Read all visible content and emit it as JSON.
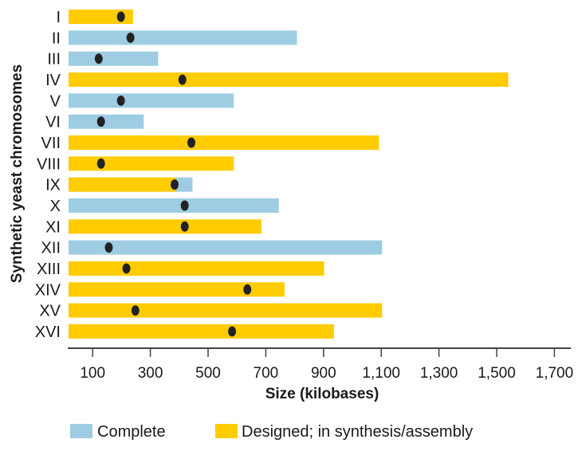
{
  "chart_data": {
    "type": "bar",
    "orientation": "horizontal",
    "xlabel": "Size (kilobases)",
    "ylabel": "Synthetic yeast chromosomes",
    "xlim": [
      14,
      1760
    ],
    "xticks": [
      100,
      300,
      500,
      700,
      900,
      1100,
      1300,
      1500,
      1700
    ],
    "xtick_labels": [
      "100",
      "300",
      "500",
      "700",
      "900",
      "1,100",
      "1,300",
      "1,500",
      "1,700"
    ],
    "colors": {
      "complete": "#9ecde3",
      "designed": "#ffcc00",
      "centromere": "#222222"
    },
    "legend": {
      "placement": "bottom",
      "items": [
        {
          "key": "complete",
          "label": "Complete"
        },
        {
          "key": "designed",
          "label": "Designed; in synthesis/assembly"
        }
      ]
    },
    "chromosomes": [
      {
        "name": "I",
        "size": 240,
        "status": "designed",
        "centromere": 198
      },
      {
        "name": "II",
        "size": 808,
        "status": "complete",
        "centromere": 231
      },
      {
        "name": "III",
        "size": 327,
        "status": "complete",
        "centromere": 121
      },
      {
        "name": "IV",
        "size": 1540,
        "status": "designed",
        "centromere": 411
      },
      {
        "name": "V",
        "size": 589,
        "status": "complete",
        "centromere": 198
      },
      {
        "name": "VI",
        "size": 277,
        "status": "complete",
        "centromere": 129
      },
      {
        "name": "VII",
        "size": 1092,
        "status": "designed",
        "centromere": 442
      },
      {
        "name": "VIII",
        "size": 589,
        "status": "designed",
        "centromere": 129
      },
      {
        "name": "IX",
        "size": 446,
        "status": "mixed",
        "designed_until": 390,
        "centromere": 384
      },
      {
        "name": "X",
        "size": 745,
        "status": "complete",
        "centromere": 419
      },
      {
        "name": "XI",
        "size": 685,
        "status": "designed",
        "centromere": 419
      },
      {
        "name": "XII",
        "size": 1103,
        "status": "complete",
        "centromere": 156
      },
      {
        "name": "XIII",
        "size": 902,
        "status": "designed",
        "centromere": 217
      },
      {
        "name": "XIV",
        "size": 765,
        "status": "designed",
        "centromere": 636
      },
      {
        "name": "XV",
        "size": 1103,
        "status": "designed",
        "centromere": 248
      },
      {
        "name": "XVI",
        "size": 936,
        "status": "designed",
        "centromere": 583
      }
    ]
  }
}
